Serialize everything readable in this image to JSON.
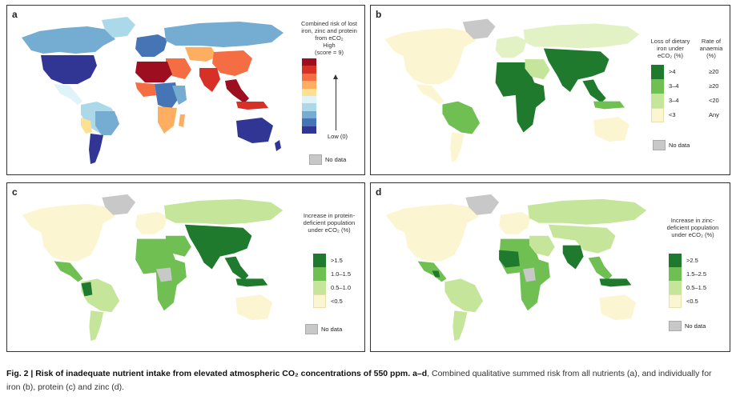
{
  "panels": {
    "a": {
      "letter": "a",
      "legend_title": "Combined risk of lost iron, zinc and protein from eCO₂",
      "high_label": "High",
      "high_sub": "(score = 9)",
      "low_label": "Low (0)",
      "scale_colors": [
        "#9e0e21",
        "#d73027",
        "#f46d43",
        "#fdae61",
        "#fee090",
        "#e0f3f8",
        "#abd9e9",
        "#74add1",
        "#4575b4",
        "#313695"
      ],
      "nodata": "No data"
    },
    "b": {
      "letter": "b",
      "col1_title": "Loss of dietary iron under eCO₂ (%)",
      "col2_title": "Rate of anaemia (%)",
      "rows": [
        {
          "c1": ">4",
          "c2": "≥20",
          "color": "#1f7a2e"
        },
        {
          "c1": "3–4",
          "c2": "≥20",
          "color": "#6fbf52"
        },
        {
          "c1": "3–4",
          "c2": "<20",
          "color": "#c4e59a"
        },
        {
          "c1": "<3",
          "c2": "Any",
          "color": "#fbf6d1"
        }
      ],
      "nodata": "No data"
    },
    "c": {
      "letter": "c",
      "legend_title": "Increase in protein-deficient population under eCO₂ (%)",
      "rows": [
        {
          "label": ">1.5",
          "color": "#1f7a2e"
        },
        {
          "label": "1.0–1.5",
          "color": "#6fbf52"
        },
        {
          "label": "0.5–1.0",
          "color": "#c4e59a"
        },
        {
          "label": "<0.5",
          "color": "#fbf6d1"
        }
      ],
      "nodata": "No data"
    },
    "d": {
      "letter": "d",
      "legend_title": "Increase in zinc-deficient population under eCO₂ (%)",
      "rows": [
        {
          "label": ">2.5",
          "color": "#1f7a2e"
        },
        {
          "label": "1.5–2.5",
          "color": "#6fbf52"
        },
        {
          "label": "0.5–1.5",
          "color": "#c4e59a"
        },
        {
          "label": "<0.5",
          "color": "#fbf6d1"
        }
      ],
      "nodata": "No data"
    }
  },
  "caption": {
    "fig_label": "Fig. 2 |",
    "title": "Risk of inadequate nutrient intake from elevated atmospheric CO₂ concentrations of 550 ppm.",
    "range_label": "a–d",
    "body": ", Combined qualitative summed risk from all nutrients (a), and individually for iron (b), protein (c) and zinc (d)."
  },
  "colors": {
    "nodata": "#c8c8c8",
    "ocean": "#ffffff"
  }
}
